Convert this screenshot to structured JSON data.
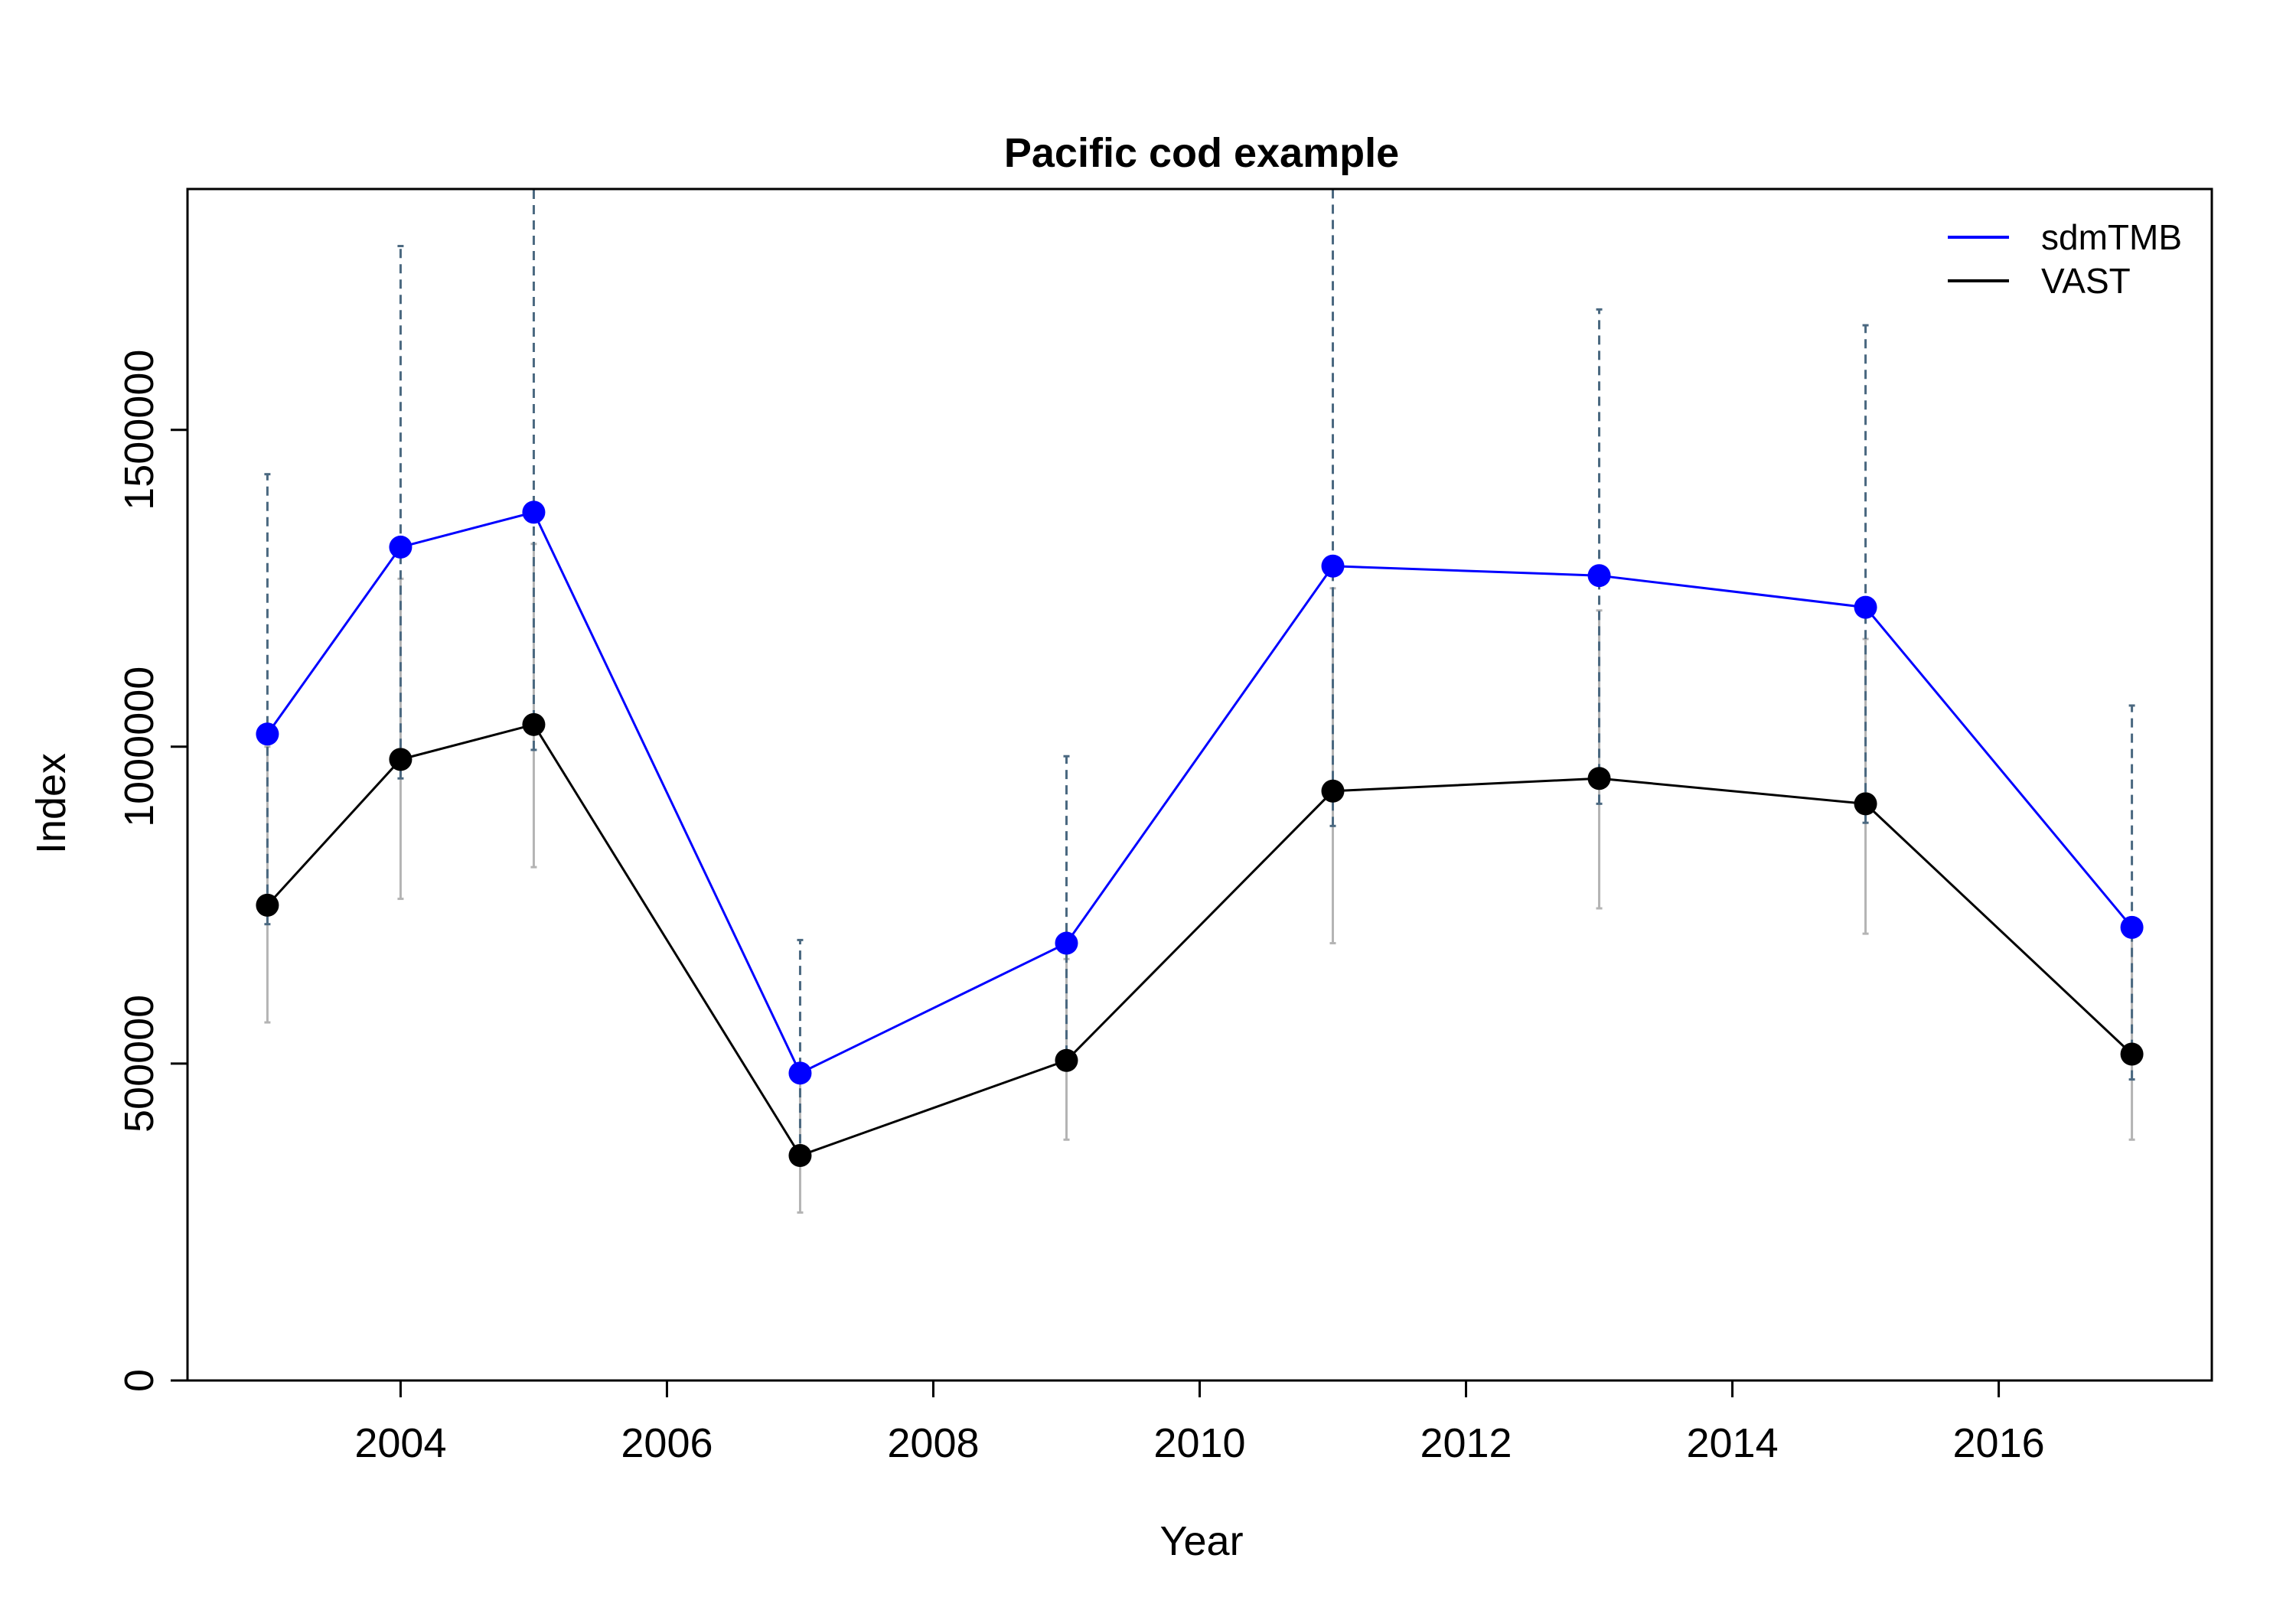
{
  "chart_data": {
    "type": "line",
    "title": "Pacific cod example",
    "xlabel": "Year",
    "ylabel": "Index",
    "xlim": [
      2002.4,
      2017.6
    ],
    "ylim": [
      0,
      1880000
    ],
    "xticks": [
      2004,
      2006,
      2008,
      2010,
      2012,
      2014,
      2016
    ],
    "yticks": [
      0,
      500000,
      1000000,
      1500000
    ],
    "xtick_labels": [
      "2004",
      "2006",
      "2008",
      "2010",
      "2012",
      "2014",
      "2016"
    ],
    "ytick_labels": [
      "0",
      "500000",
      "1000000",
      "1500000"
    ],
    "grid": false,
    "legend": {
      "position": "top-right"
    },
    "x": [
      2003,
      2004,
      2005,
      2007,
      2009,
      2011,
      2013,
      2015,
      2017
    ],
    "series": [
      {
        "name": "VAST",
        "color": "#000000",
        "values": [
          750000,
          980000,
          1035000,
          355000,
          505000,
          930000,
          950000,
          910000,
          515000
        ],
        "lower": [
          565000,
          760000,
          810000,
          265000,
          380000,
          690000,
          745000,
          705000,
          380000
        ],
        "upper": [
          1000000,
          1265000,
          1320000,
          480000,
          665000,
          1250000,
          1215000,
          1170000,
          700000
        ],
        "error_color": "#b4b4b4"
      },
      {
        "name": "sdmTMB",
        "color": "#0000ff",
        "values": [
          1020000,
          1315000,
          1370000,
          485000,
          690000,
          1285000,
          1270000,
          1220000,
          715000
        ],
        "lower": [
          720000,
          950000,
          995000,
          350000,
          490000,
          875000,
          910000,
          880000,
          475000
        ],
        "upper": [
          1430000,
          1790000,
          1880000,
          695000,
          985000,
          1880000,
          1690000,
          1665000,
          1065000
        ],
        "error_color": "#4a6880"
      }
    ]
  }
}
